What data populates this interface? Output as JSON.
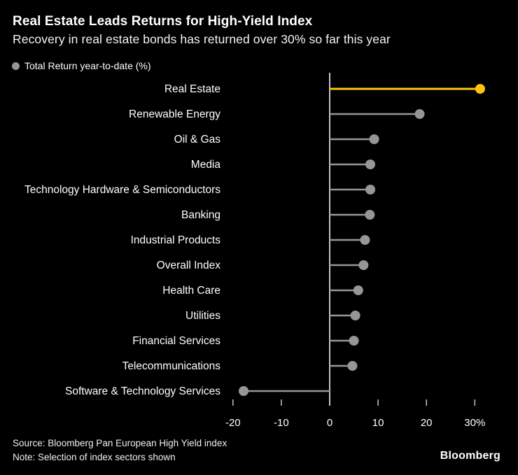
{
  "header": {
    "title": "Real Estate Leads Returns for High-Yield Index",
    "subtitle": "Recovery in real estate bonds has returned over 30% so far this year"
  },
  "legend": {
    "label": "Total Return year-to-date (%)"
  },
  "chart_data": {
    "type": "bar",
    "variant": "lollipop",
    "orientation": "horizontal",
    "title": "Total Return year-to-date (%)",
    "categories": [
      "Real Estate",
      "Renewable Energy",
      "Oil & Gas",
      "Media",
      "Technology Hardware & Semiconductors",
      "Banking",
      "Industrial Products",
      "Overall Index",
      "Health Care",
      "Utilities",
      "Financial Services",
      "Telecommunications",
      "Software & Technology Services"
    ],
    "values": [
      31.1,
      18.6,
      9.2,
      8.4,
      8.4,
      8.3,
      7.3,
      7.0,
      5.9,
      5.3,
      5.0,
      4.7,
      -17.8
    ],
    "highlight_index": 0,
    "xlim": [
      -22,
      34
    ],
    "x_ticks": [
      -20,
      -10,
      0,
      10,
      20,
      30
    ],
    "x_tick_labels": [
      "-20",
      "-10",
      "0",
      "10",
      "20",
      "30%"
    ],
    "grid": false,
    "legend_position": "top-left"
  },
  "colors": {
    "background": "#000000",
    "text": "#ffffff",
    "accent_yellow": "#ffc40d",
    "series_gray": "#969696",
    "axis_gray": "#c4c4c4"
  },
  "footer": {
    "source": "Source: Bloomberg Pan European High Yield index",
    "note": "Note: Selection of index sectors shown",
    "logo": "Bloomberg"
  }
}
